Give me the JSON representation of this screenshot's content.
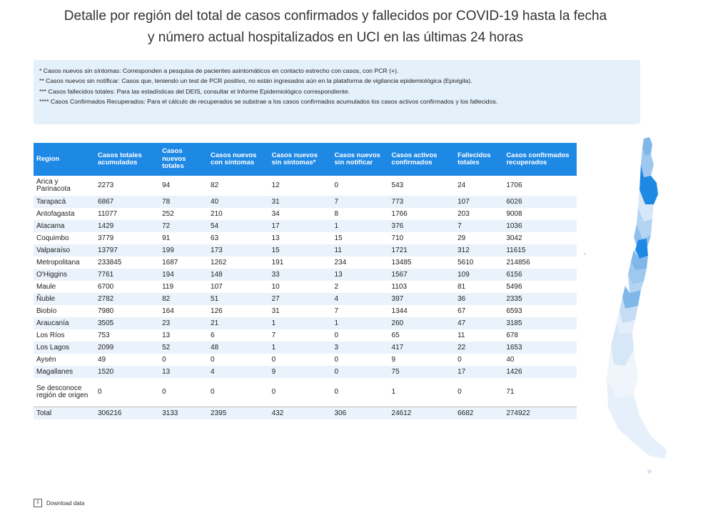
{
  "title_line1": "Detalle por región del total de casos confirmados y fallecidos por COVID-19 hasta la fecha",
  "title_line2": "y número actual hospitalizados en UCI en las últimas 24 horas",
  "notes": [
    "* Casos nuevos sin síntomas: Corresponden a pesquisa de pacientes asintomáticos en contacto estrecho con casos, con PCR (+).",
    "** Casos nuevos sin notificar: Casos que, teniendo un test de PCR positivo, no están ingresados aún en la plataforma de vigilancia epidemiológica (Epivigila).",
    "*** Casos fallecidos totales: Para las estadísticas del DEIS, consultar el Informe Epidemiológico correspondiente.",
    "**** Casos Confirmados Recuperados: Para el cálculo de recuperados se substrae a los casos confirmados acumulados los casos activos confirmados y los fallecidos."
  ],
  "download_label": "Download data",
  "colors": {
    "header": "#1e88e5",
    "alt_row": "#eaf3fb",
    "note_bg": "#e4f0fa"
  },
  "chart_data": {
    "type": "table",
    "columns": [
      "Region",
      "Casos totales acumulados",
      "Casos nuevos totales",
      "Casos nuevos con síntomas",
      "Casos nuevos sin síntomas*",
      "Casos nuevos sin notificar",
      "Casos activos confirmados",
      "Fallecidos totales",
      "Casos confirmados recuperados"
    ],
    "rows": [
      [
        "Arica y Parinacota",
        "2273",
        "94",
        "82",
        "12",
        "0",
        "543",
        "24",
        "1706"
      ],
      [
        "Tarapacá",
        "6867",
        "78",
        "40",
        "31",
        "7",
        "773",
        "107",
        "6026"
      ],
      [
        "Antofagasta",
        "11077",
        "252",
        "210",
        "34",
        "8",
        "1766",
        "203",
        "9008"
      ],
      [
        "Atacama",
        "1429",
        "72",
        "54",
        "17",
        "1",
        "376",
        "7",
        "1036"
      ],
      [
        "Coquimbo",
        "3779",
        "91",
        "63",
        "13",
        "15",
        "710",
        "29",
        "3042"
      ],
      [
        "Valparaíso",
        "13797",
        "199",
        "173",
        "15",
        "11",
        "1721",
        "312",
        "11615"
      ],
      [
        "Metropolitana",
        "233845",
        "1687",
        "1262",
        "191",
        "234",
        "13485",
        "5610",
        "214856"
      ],
      [
        "O'Higgins",
        "7761",
        "194",
        "148",
        "33",
        "13",
        "1567",
        "109",
        "6156"
      ],
      [
        "Maule",
        "6700",
        "119",
        "107",
        "10",
        "2",
        "1103",
        "81",
        "5496"
      ],
      [
        "Ñuble",
        "2782",
        "82",
        "51",
        "27",
        "4",
        "397",
        "36",
        "2335"
      ],
      [
        "Biobío",
        "7980",
        "164",
        "126",
        "31",
        "7",
        "1344",
        "67",
        "6593"
      ],
      [
        "Araucanía",
        "3505",
        "23",
        "21",
        "1",
        "1",
        "260",
        "47",
        "3185"
      ],
      [
        "Los Ríos",
        "753",
        "13",
        "6",
        "7",
        "0",
        "65",
        "11",
        "678"
      ],
      [
        "Los Lagos",
        "2099",
        "52",
        "48",
        "1",
        "3",
        "417",
        "22",
        "1653"
      ],
      [
        "Aysén",
        "49",
        "0",
        "0",
        "0",
        "0",
        "9",
        "0",
        "40"
      ],
      [
        "Magallanes",
        "1520",
        "13",
        "4",
        "9",
        "0",
        "75",
        "17",
        "1426"
      ],
      [
        "Se desconoce región de origen",
        "0",
        "0",
        "0",
        "0",
        "0",
        "1",
        "0",
        "71"
      ]
    ],
    "total": [
      "Total",
      "306216",
      "3133",
      "2395",
      "432",
      "306",
      "24612",
      "6682",
      "274922"
    ]
  }
}
